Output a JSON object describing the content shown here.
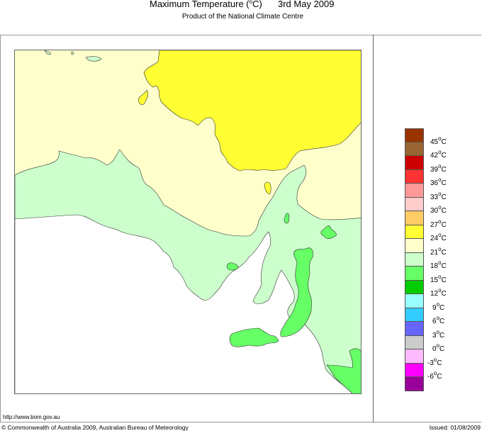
{
  "header": {
    "title": "Maximum Temperature (",
    "title_unit_sup": "o",
    "title_unit_tail": "C)",
    "date": "3rd May 2009",
    "subtitle": "Product of the National Climate Centre"
  },
  "legend": {
    "swatches": [
      {
        "color": "#993300"
      },
      {
        "color": "#996633"
      },
      {
        "color": "#CC0000"
      },
      {
        "color": "#FF3333"
      },
      {
        "color": "#FF9999"
      },
      {
        "color": "#FFCCCC"
      },
      {
        "color": "#FFCC66"
      },
      {
        "color": "#FFFF33"
      },
      {
        "color": "#FFFFCC"
      },
      {
        "color": "#CCFFCC"
      },
      {
        "color": "#66FF66"
      },
      {
        "color": "#00CC00"
      },
      {
        "color": "#99FFFF"
      },
      {
        "color": "#33CCFF"
      },
      {
        "color": "#6666FF"
      },
      {
        "color": "#CCCCCC"
      },
      {
        "color": "#FFBBFF"
      },
      {
        "color": "#FF00FF"
      },
      {
        "color": "#990099"
      }
    ],
    "labels": [
      "45",
      "42",
      "39",
      "36",
      "33",
      "30",
      "27",
      "24",
      "21",
      "18",
      "15",
      "12",
      "9",
      "6",
      "3",
      "0",
      "-3",
      "-6"
    ],
    "unit_sup": "o",
    "unit": "C"
  },
  "map": {
    "region": "South Australia",
    "colors": {
      "band_24_27": "#FFFF33",
      "band_21_24": "#FFFFCC",
      "band_18_21": "#CCFFCC",
      "band_15_18": "#66FF66",
      "sea": "#FFFFFF",
      "outline": "#333333"
    }
  },
  "footer": {
    "url": "http://www.bom.gov.au",
    "copyright": "© Commonwealth of Australia 2009, Australian Bureau of Meteorology",
    "issued": "Issued: 01/08/2009"
  },
  "chart_data": {
    "type": "heatmap",
    "title": "Maximum Temperature (°C) 3rd May 2009",
    "subtitle": "Product of the National Climate Centre",
    "legend_position": "right",
    "color_scale": [
      {
        "range": ">45",
        "color": "#993300"
      },
      {
        "range": "42-45",
        "color": "#996633"
      },
      {
        "range": "39-42",
        "color": "#CC0000"
      },
      {
        "range": "36-39",
        "color": "#FF3333"
      },
      {
        "range": "33-36",
        "color": "#FF9999"
      },
      {
        "range": "30-33",
        "color": "#FFCCCC"
      },
      {
        "range": "27-30",
        "color": "#FFCC66"
      },
      {
        "range": "24-27",
        "color": "#FFFF33"
      },
      {
        "range": "21-24",
        "color": "#FFFFCC"
      },
      {
        "range": "18-21",
        "color": "#CCFFCC"
      },
      {
        "range": "15-18",
        "color": "#66FF66"
      },
      {
        "range": "12-15",
        "color": "#00CC00"
      },
      {
        "range": "9-12",
        "color": "#99FFFF"
      },
      {
        "range": "6-9",
        "color": "#33CCFF"
      },
      {
        "range": "3-6",
        "color": "#6666FF"
      },
      {
        "range": "0-3",
        "color": "#CCCCCC"
      },
      {
        "range": "-3-0",
        "color": "#FFBBFF"
      },
      {
        "range": "-6--3",
        "color": "#FF00FF"
      },
      {
        "range": "<-6",
        "color": "#990099"
      }
    ],
    "tick_labels": [
      "45°C",
      "42°C",
      "39°C",
      "36°C",
      "33°C",
      "30°C",
      "27°C",
      "24°C",
      "21°C",
      "18°C",
      "15°C",
      "12°C",
      "9°C",
      "6°C",
      "3°C",
      "0°C",
      "-3°C",
      "-6°C"
    ],
    "regions_present": [
      {
        "band": "24-27",
        "area": "north-east interior"
      },
      {
        "band": "21-24",
        "area": "north-west and central interior"
      },
      {
        "band": "18-21",
        "area": "southern coastal and south-east"
      },
      {
        "band": "15-18",
        "area": "Mount Lofty Ranges, Kangaroo Island, far south-east"
      }
    ]
  }
}
